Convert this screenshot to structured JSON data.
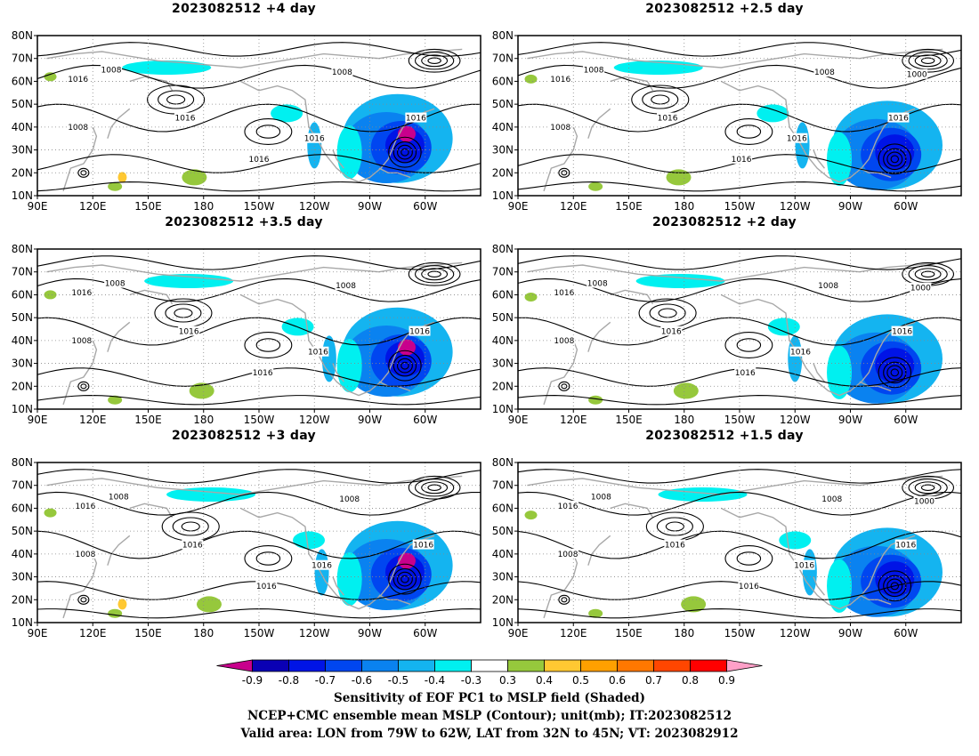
{
  "panels": [
    {
      "title": "2023082512  +4 day",
      "lead_days": 4
    },
    {
      "title": "2023082512  +2.5 day",
      "lead_days": 2.5
    },
    {
      "title": "2023082512  +3.5 day",
      "lead_days": 3.5
    },
    {
      "title": "2023082512  +2 day",
      "lead_days": 2
    },
    {
      "title": "2023082512  +3 day",
      "lead_days": 3
    },
    {
      "title": "2023082512  +1.5 day",
      "lead_days": 1.5
    }
  ],
  "axes": {
    "lat_labels": [
      "80N",
      "70N",
      "60N",
      "50N",
      "40N",
      "30N",
      "20N",
      "10N"
    ],
    "lat_values": [
      80,
      70,
      60,
      50,
      40,
      30,
      20,
      10
    ],
    "lon_labels": [
      "90E",
      "120E",
      "150E",
      "180",
      "150W",
      "120W",
      "90W",
      "60W"
    ],
    "lon_values": [
      90,
      120,
      150,
      180,
      210,
      240,
      270,
      300
    ],
    "lon_range": [
      90,
      330
    ],
    "lat_range": [
      10,
      80
    ],
    "grid": true
  },
  "contour_label_values": [
    "1000",
    "1008",
    "1016"
  ],
  "colorbar": {
    "ticks": [
      "-0.9",
      "-0.8",
      "-0.7",
      "-0.6",
      "-0.5",
      "-0.4",
      "-0.3",
      "0.3",
      "0.4",
      "0.5",
      "0.6",
      "0.7",
      "0.8",
      "0.9"
    ],
    "colors": [
      "#c8008c",
      "#0a00b4",
      "#0014e6",
      "#0046f0",
      "#0a82f0",
      "#14b4f0",
      "#00f0f0",
      "#ffffff",
      "#96c83c",
      "#ffc832",
      "#ffa000",
      "#ff7800",
      "#ff4600",
      "#ff0000",
      "#ffa0c8"
    ]
  },
  "caption": {
    "line1": "Sensitivity of EOF PC1 to MSLP field (Shaded)",
    "line2": "NCEP+CMC ensemble mean MSLP (Contour); unit(mb); IT:2023082512",
    "line3": "Valid area: LON from 79W to 62W, LAT from 32N to 45N; VT: 2023082912"
  }
}
